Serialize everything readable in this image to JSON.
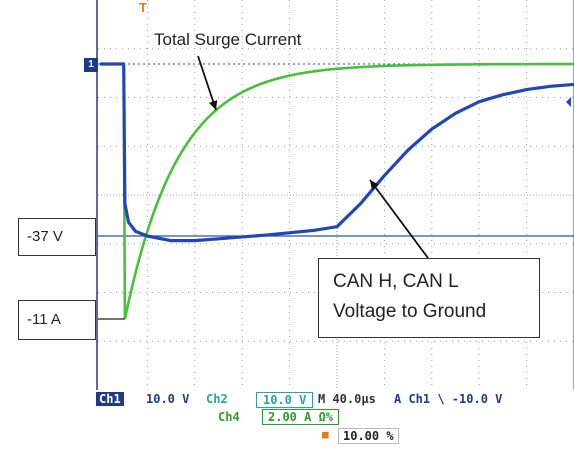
{
  "annotations": {
    "total_surge_current": "Total Surge Current",
    "voltage_level": "-37 V",
    "current_level": "-11 A",
    "can_line1": "CAN H, CAN L",
    "can_line2": "Voltage to Ground"
  },
  "markers": {
    "channel_ground": "1",
    "trigger": "T"
  },
  "status": {
    "ch1_label": "Ch1",
    "ch1_scale": "10.0 V",
    "ch2_label": "Ch2",
    "ch2_scale": "10.0 V",
    "timebase": "M 40.0µs",
    "trigger_info": "A  Ch1  \\  -10.0 V",
    "ch4_label": "Ch4",
    "ch4_scale": "2.00 A Ω%",
    "position": "10.00 %"
  },
  "colors": {
    "voltage_trace": "#2146b8",
    "current_trace": "#47c13a",
    "reference_line": "#2f4fb0"
  },
  "chart_data": {
    "type": "line",
    "x_unit": "µs",
    "x_div": 40,
    "xlim": [
      0,
      400
    ],
    "grid": true,
    "series": [
      {
        "name": "CAN H, CAN L Voltage to Ground",
        "y_unit": "V",
        "x": [
          0,
          20,
          21,
          24,
          30,
          40,
          60,
          80,
          100,
          140,
          180,
          200,
          220,
          240,
          260,
          280,
          300,
          320,
          340,
          360,
          380,
          400
        ],
        "y": [
          0,
          0,
          -30,
          -34,
          -36,
          -37,
          -38,
          -38,
          -37.6,
          -36.8,
          -35.8,
          -35,
          -30,
          -24,
          -18.5,
          -14,
          -10.6,
          -8.1,
          -6.6,
          -5.5,
          -4.8,
          -4.4
        ]
      },
      {
        "name": "Total Surge Current",
        "y_unit": "A",
        "x": [
          0,
          20,
          21,
          40,
          60,
          80,
          100,
          120,
          140,
          160,
          180,
          200,
          240,
          280,
          320,
          360,
          400
        ],
        "y": [
          0,
          0,
          -11,
          -6.5,
          -4,
          -2.6,
          -1.8,
          -1.3,
          -0.8,
          -0.45,
          -0.25,
          0,
          0,
          0,
          0,
          0,
          0
        ]
      }
    ],
    "reference_levels": [
      {
        "label": "-37 V",
        "value": -37,
        "unit": "V"
      },
      {
        "label": "-11 A",
        "value": -11,
        "unit": "A"
      }
    ]
  }
}
